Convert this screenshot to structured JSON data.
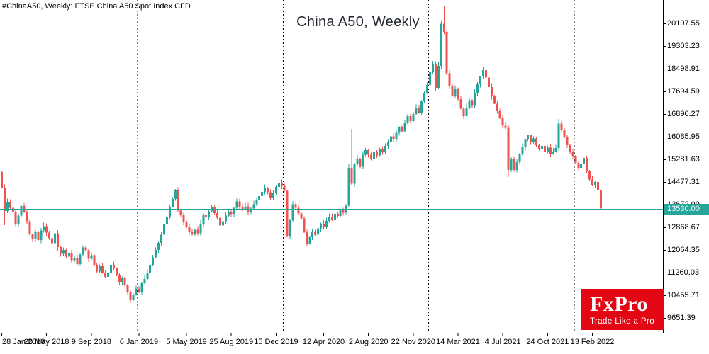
{
  "header": {
    "symbol_label": "#ChinaA50, Weekly: FTSE China A50 Spot Index CFD"
  },
  "chart": {
    "title": "China A50, Weekly"
  },
  "logo": {
    "brand": "FxPro",
    "tagline": "Trade Like a Pro"
  },
  "colors": {
    "bull": "#26a69a",
    "bear": "#ef5350",
    "price_line": "#26a69a",
    "price_label_bg": "#26a69a",
    "price_label_text": "#ffffff",
    "separator": "#000000",
    "axis": "#000000",
    "logo_red": "#e30613",
    "background": "#ffffff"
  },
  "chart_data": {
    "type": "candlestick",
    "title": "China A50, Weekly",
    "symbol": "#ChinaA50",
    "timeframe": "Weekly",
    "instrument": "FTSE China A50 Spot Index CFD",
    "current_price": 13530.0,
    "current_price_label": "13530.00",
    "grid": false,
    "legend_position": "none",
    "ylim": [
      9250,
      20940
    ],
    "y_axis_ticks": [
      "20107.55",
      "19303.23",
      "18498.91",
      "17694.59",
      "16890.27",
      "16085.95",
      "15281.63",
      "14477.31",
      "13672.99",
      "12868.67",
      "12064.35",
      "11260.03",
      "10455.71",
      "9651.39"
    ],
    "x_axis_ticks": [
      {
        "label": "28 Jan 2018",
        "week": 0
      },
      {
        "label": "20 May 2018",
        "week": 16
      },
      {
        "label": "9 Sep 2018",
        "week": 32
      },
      {
        "label": "6 Jan 2019",
        "week": 49
      },
      {
        "label": "5 May 2019",
        "week": 66
      },
      {
        "label": "25 Aug 2019",
        "week": 82
      },
      {
        "label": "15 Dec 2019",
        "week": 98
      },
      {
        "label": "12 Apr 2020",
        "week": 115
      },
      {
        "label": "2 Aug 2020",
        "week": 131
      },
      {
        "label": "22 Nov 2020",
        "week": 147
      },
      {
        "label": "14 Mar 2021",
        "week": 163
      },
      {
        "label": "4 Jul 2021",
        "week": 179
      },
      {
        "label": "24 Oct 2021",
        "week": 195
      },
      {
        "label": "13 Feb 2022",
        "week": 211
      }
    ],
    "year_separator_weeks": [
      48.5,
      100.5,
      152.5,
      204.5
    ],
    "first_open": 14830,
    "weekly_closes": [
      14280,
      13450,
      13760,
      13560,
      13400,
      12980,
      13280,
      13620,
      13400,
      13080,
      12620,
      12450,
      12700,
      12420,
      12760,
      12910,
      12680,
      12480,
      12300,
      12650,
      12160,
      11920,
      12060,
      11820,
      11960,
      11700,
      11780,
      11560,
      11900,
      12150,
      12050,
      11750,
      11880,
      11520,
      11300,
      11480,
      11260,
      11110,
      11260,
      11520,
      11420,
      11160,
      10920,
      11060,
      10820,
      10560,
      10280,
      10480,
      10700,
      10560,
      10880,
      11040,
      11260,
      11520,
      11800,
      12060,
      12320,
      12600,
      12980,
      13240,
      13600,
      13880,
      14180,
      13460,
      13300,
      13060,
      12880,
      12700,
      12640,
      12780,
      12660,
      13000,
      13320,
      13240,
      13440,
      13600,
      13370,
      13210,
      12930,
      13080,
      13280,
      13400,
      13340,
      13560,
      13780,
      13590,
      13480,
      13610,
      13400,
      13540,
      13680,
      13830,
      13980,
      14120,
      14260,
      14110,
      13900,
      14080,
      14300,
      14440,
      14340,
      14160,
      12560,
      13120,
      13680,
      13560,
      13360,
      13180,
      12720,
      12280,
      12520,
      12700,
      12610,
      12830,
      12980,
      12900,
      13100,
      13240,
      13120,
      13340,
      13270,
      13480,
      13380,
      13640,
      14980,
      14420,
      15120,
      15310,
      15020,
      15450,
      15610,
      15450,
      15280,
      15530,
      15420,
      15660,
      15550,
      15760,
      15900,
      16100,
      15980,
      16230,
      16420,
      16280,
      16560,
      16820,
      16640,
      16890,
      17110,
      16930,
      17350,
      17640,
      17920,
      18400,
      18680,
      17820,
      18600,
      20100,
      19800,
      18330,
      17890,
      17550,
      17800,
      17420,
      17080,
      16820,
      17120,
      17380,
      17180,
      17650,
      17940,
      18220,
      18450,
      18180,
      17850,
      17520,
      17260,
      16990,
      16740,
      16480,
      16400,
      14900,
      15280,
      14900,
      15180,
      15460,
      15720,
      15980,
      16130,
      15890,
      16020,
      15780,
      15640,
      15760,
      15560,
      15700,
      15480,
      15560,
      15680,
      16550,
      16320,
      16080,
      15780,
      15560,
      15400,
      15160,
      14980,
      15120,
      15330,
      14880,
      14560,
      14350,
      14480,
      14200,
      13530
    ],
    "wick_overrides": {
      "1": {
        "low": 12950
      },
      "46": {
        "low": 10180
      },
      "125": {
        "high": 16360
      },
      "158": {
        "high": 20730
      },
      "181": {
        "low": 14650
      },
      "199": {
        "high": 16710
      },
      "214": {
        "low": 12950
      }
    }
  }
}
